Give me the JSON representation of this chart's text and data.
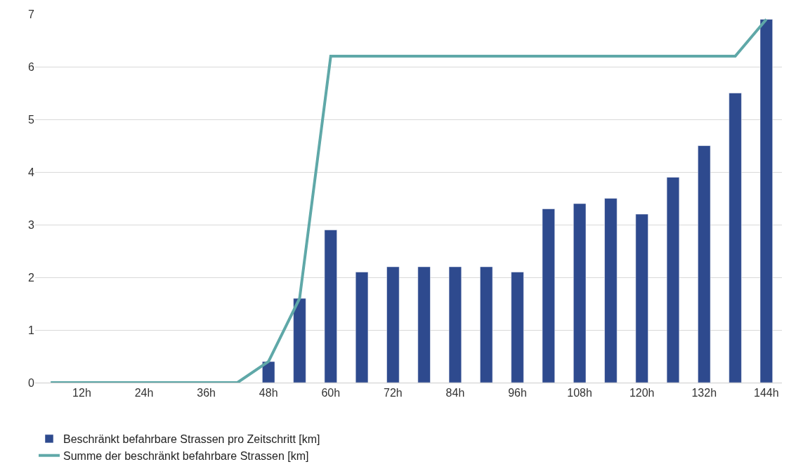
{
  "chart_data": {
    "type": "bar",
    "categories": [
      null,
      "12h",
      null,
      "24h",
      null,
      "36h",
      null,
      "48h",
      null,
      "60h",
      null,
      "72h",
      null,
      "84h",
      null,
      "96h",
      null,
      "108h",
      null,
      "120h",
      null,
      "132h",
      null,
      "144h"
    ],
    "series": [
      {
        "name": "Beschränkt befahrbare Strassen pro Zeitschritt [km]",
        "color": "#2e4a8e",
        "values": [
          null,
          null,
          null,
          null,
          null,
          null,
          null,
          0.4,
          1.6,
          2.9,
          2.1,
          2.2,
          2.2,
          2.2,
          2.2,
          2.1,
          3.3,
          3.4,
          3.5,
          3.2,
          3.9,
          4.5,
          5.5,
          6.9
        ]
      },
      {
        "name": "Summe der beschränkt befahrbare Strassen [km]",
        "type": "line",
        "color": "#5fa8a8",
        "values": [
          0,
          0,
          0,
          0,
          0,
          0,
          0,
          0.4,
          1.6,
          6.2,
          6.2,
          6.2,
          6.2,
          6.2,
          6.2,
          6.2,
          6.2,
          6.2,
          6.2,
          6.2,
          6.2,
          6.2,
          6.2,
          6.9
        ]
      }
    ],
    "ylim": [
      0,
      7
    ],
    "yticks": [
      0,
      1,
      2,
      3,
      4,
      5,
      6,
      7
    ],
    "grid": "y",
    "legend": "bottom left"
  }
}
